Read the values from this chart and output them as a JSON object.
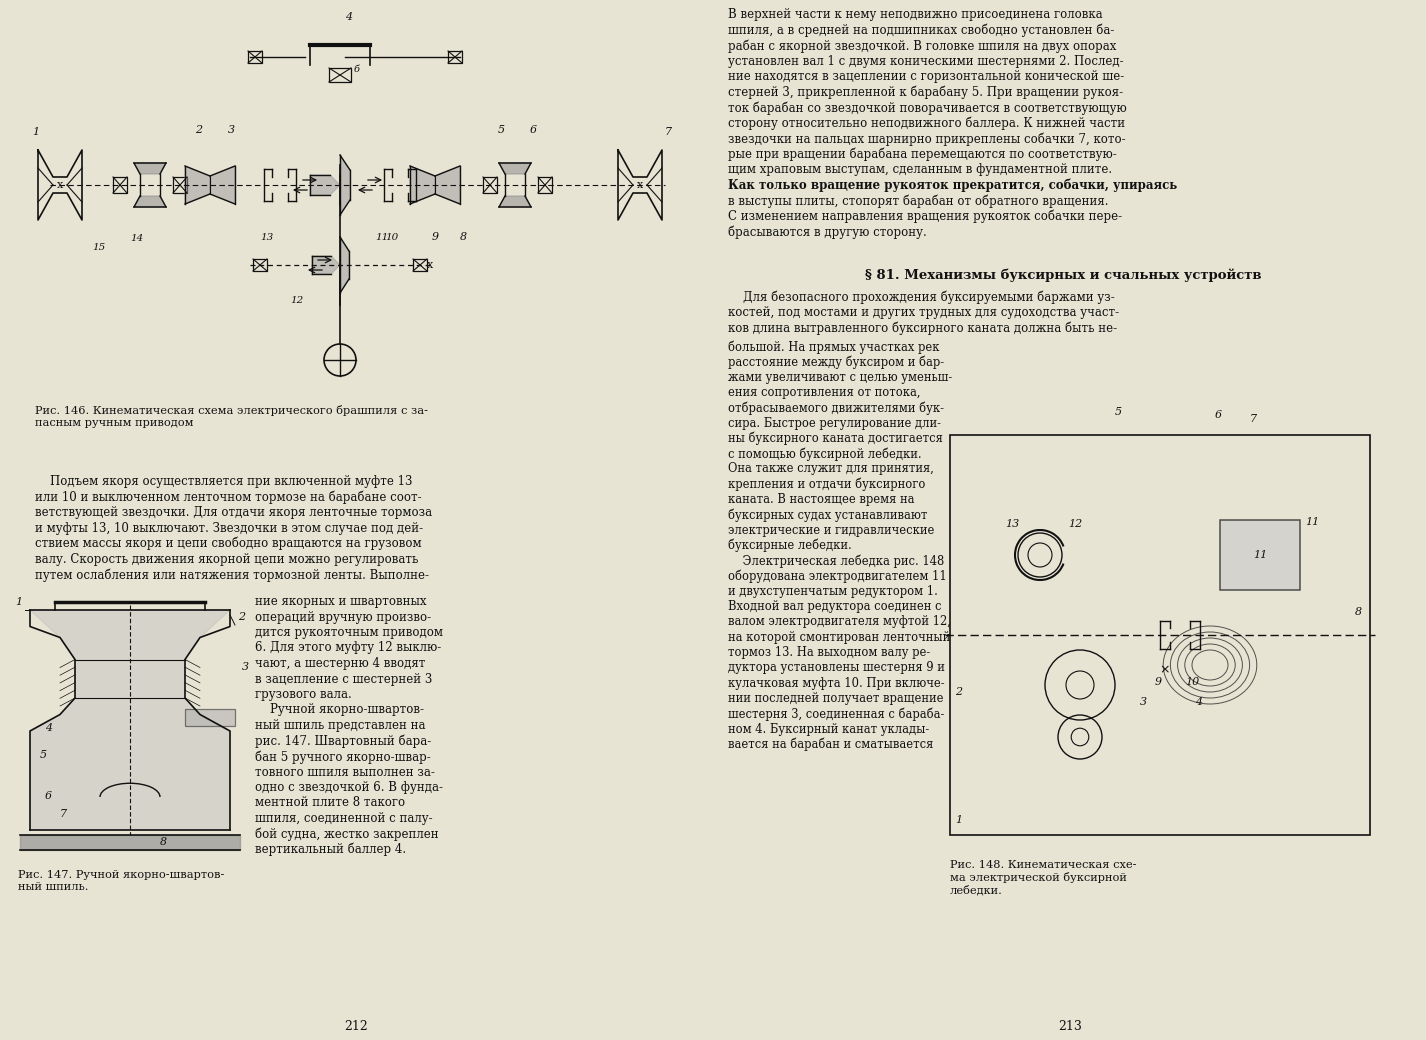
{
  "page_bg": "#e8e4d4",
  "text_color": "#111111",
  "fig146_caption": "Рис. 146. Кинематическая схема электрического брашпиля с за-\nпасным ручным приводом",
  "fig147_caption": "Рис. 147. Ручной якорно-швартов-\nный шпиль.",
  "fig148_caption": "Рис. 148. Кинематическая схе-\nма электрической буксирной\nлебедки.",
  "page_left": "212",
  "page_right": "213",
  "section_title": "§ 81. Механизмы буксирных и счальных устройств",
  "right_top_lines": [
    "В верхней части к нему неподвижно присоединена головка",
    "шпиля, а в средней на подшипниках свободно установлен ба-",
    "рабан с якорной звездочкой. В головке шпиля на двух опорах",
    "установлен вал 1 с двумя коническими шестернями 2. Послед-",
    "ние находятся в зацеплении с горизонтальной конической ше-",
    "стерней 3, прикрепленной к барабану 5. При вращении рукоя-",
    "ток барабан со звездочкой поворачивается в соответствующую",
    "сторону относительно неподвижного баллера. К нижней части",
    "звездочки на пальцах шарнирно прикреплены собачки 7, кото-",
    "рые при вращении барабана перемещаются по соответствую-",
    "щим храповым выступам, сделанным в фундаментной плите.",
    "Как только вращение рукояток прекратится, собачки, упираясь",
    "в выступы плиты, стопорят барабан от обратного вращения.",
    "С изменением направления вращения рукояток собачки пере-",
    "брасываются в другую сторону."
  ],
  "left_full_lines": [
    "    Подъем якоря осуществляется при включенной муфте 13",
    "или 10 и выключенном ленточном тормозе на барабане соот-",
    "ветствующей звездочки. Для отдачи якоря ленточные тормоза",
    "и муфты 13, 10 выключают. Звездочки в этом случае под дей-",
    "ствием массы якоря и цепи свободно вращаются на грузовом",
    "валу. Скорость движения якорной цепи можно регулировать",
    "путем ослабления или натяжения тормозной ленты. Выполне-"
  ],
  "mid_right_lines": [
    "ние якорных и швартовных",
    "операций вручную произво-",
    "дится рукояточным приводом",
    "6. Для этого муфту 12 выклю-",
    "чают, а шестерню 4 вводят",
    "в зацепление с шестерней 3",
    "грузового вала.",
    "    Ручной якорно-швартов-",
    "ный шпиль представлен на",
    "рис. 147. Швартовный бара-",
    "бан 5 ручного якорно-швар-",
    "товного шпиля выполнен за-",
    "одно с звездочкой 6. В фунда-",
    "ментной плите 8 такого",
    "шпиля, соединенной с палу-",
    "бой судна, жестко закреплен",
    "вертикальный баллер 4."
  ],
  "right_bottom_col1": [
    "большой. На прямых участках рек",
    "расстояние между буксиром и бар-",
    "жами увеличивают с целью уменьш-",
    "ения сопротивления от потока,",
    "отбрасываемого движителями бук-",
    "сира. Быстрое регулирование дли-",
    "ны буксирного каната достигается",
    "с помощью буксирной лебедки.",
    "Она также служит для принятия,",
    "крепления и отдачи буксирного",
    "каната. В настоящее время на",
    "буксирных судах устанавливают",
    "электрические и гидравлические",
    "буксирные лебедки.",
    "    Электрическая лебедка рис. 148",
    "оборудована электродвигателем 11",
    "и двухступенчатым редуктором 1.",
    "Входной вал редуктора соединен с",
    "валом электродвигателя муфтой 12,",
    "на которой смонтирован ленточный",
    "тормоз 13. На выходном валу ре-",
    "дуктора установлены шестерня 9 и",
    "кулачковая муфта 10. При включе-",
    "нии последней получает вращение",
    "шестерня 3, соединенная с бараба-",
    "ном 4. Буксирный канат уклады-",
    "вается на барабан и сматывается"
  ],
  "right_top_para": [
    "    Для безопасного прохождения буксируемыми баржами уз-",
    "костей, под мостами и других трудных для судоходства участ-",
    "ков длина вытравленного буксирного каната должна быть не-"
  ]
}
